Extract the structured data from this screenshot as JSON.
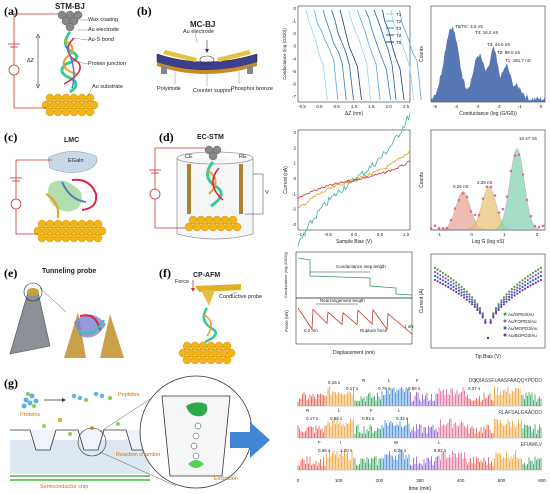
{
  "labels": {
    "a": "(a)",
    "b": "(b)",
    "c": "(c)",
    "d": "(d)",
    "e": "(e)",
    "f": "(f)",
    "g": "(g)"
  },
  "panel_a": {
    "title": "STM-BJ",
    "wax": "Wax coating",
    "au_electrode": "Au electrode",
    "aus_bond": "Au-S bond",
    "protein_junction": "Protein junction",
    "au_substrate": "Au substrate",
    "dz": "ΔZ"
  },
  "panel_b": {
    "title": "MC-BJ",
    "au_electrode": "Au electrode",
    "polyimide": "Polyimide",
    "counter_support": "Counter support",
    "phosphor": "Phosphor bronze"
  },
  "panel_c": {
    "title": "LMC",
    "egain": "EGaIn"
  },
  "panel_d": {
    "title": "EC-STM",
    "ce": "CE",
    "re": "RE",
    "v": "V"
  },
  "panel_e": {
    "title": "Tunneling probe"
  },
  "panel_f": {
    "title": "CP-AFM",
    "force": "Force",
    "conductive_probe": "Conductive probe"
  },
  "panel_g": {
    "proteins": "Proteins",
    "peptides": "Peptides",
    "reaction_chamber": "Reaction chamber",
    "chip": "Semiconductor chip",
    "excitation": "Excitation"
  },
  "chart_data": [
    {
      "type": "line",
      "xlabel": "ΔZ (nm)",
      "ylabel": "Conductance (log (G/G0))",
      "xticks": [
        "-0.5",
        "0.0",
        "0.5",
        "1.0",
        "1.5",
        "2.0",
        "2.5"
      ],
      "yticks": [
        "0",
        "-1",
        "-2",
        "-3",
        "-4",
        "-5",
        "-6",
        "-7"
      ],
      "series": [
        {
          "name": "T1"
        },
        {
          "name": "T2"
        },
        {
          "name": "T3"
        },
        {
          "name": "T4"
        },
        {
          "name": "T5"
        }
      ],
      "colors": [
        "#9ad4ec",
        "#5aa9db",
        "#2f7ec2",
        "#1f5a9e",
        "#163e73"
      ]
    },
    {
      "type": "area",
      "xlabel": "Conductance (log (G/G0))",
      "ylabel": "Counts",
      "xticks": [
        "-5",
        "-4",
        "-3",
        "-2",
        "-1",
        "0"
      ],
      "annotations": [
        "T5/T5': 3.5 nS",
        "T4: 16.2 nS",
        "T3: 44.6 nS",
        "T2: 89.0 nS",
        "T1: 181.7 nS"
      ]
    },
    {
      "type": "line",
      "xlabel": "Sample Bias (V)",
      "ylabel": "Current (nA)",
      "xticks": [
        "-1.0",
        "-0.5",
        "0.0",
        "0.5",
        "1.0"
      ],
      "yticks": [
        "3",
        "2",
        "1",
        "0",
        "-1",
        "-2",
        "-3"
      ],
      "colors": [
        "#3bb3a4",
        "#e0a020",
        "#cc3333"
      ]
    },
    {
      "type": "scatter",
      "xlabel": "Log G (log nS)",
      "ylabel": "Counts",
      "xticks": [
        "-1",
        "0",
        "1",
        "2"
      ],
      "annotations": [
        "0.26 nS",
        "2.29 nS",
        "10.47 nS"
      ]
    },
    {
      "type": "line",
      "xlabel": "Displacement (nm)",
      "ylabel_top": "Conductance (log (G/G0))",
      "ylabel_bottom": "Force (nN)",
      "annotations": [
        "Conductance step length",
        "Rearrangement length",
        "Rupture force",
        "0.2 nm",
        "1 nN"
      ]
    },
    {
      "type": "scatter",
      "xlabel": "Tip Bias (V)",
      "ylabel": "Current (A)",
      "legend": [
        "Au/OPD3/Au",
        "Au/FOPD3/Au",
        "Au/MOPD3/Au",
        "Au/BOPD3/Au"
      ],
      "colors": [
        "#4a9c3a",
        "#9b59b6",
        "#2563c7",
        "#7a2da8"
      ]
    },
    {
      "type": "bar",
      "xlabel": "time (min)",
      "xticks": [
        "0",
        "100",
        "200",
        "300",
        "400",
        "500",
        "600"
      ],
      "sequences": [
        "DQQIASSFLAASFAAQQYPDDD",
        "RLAFSALGAADDD",
        "EFIAWLV"
      ],
      "row1": [
        "0.16 s",
        "R",
        "L",
        "F",
        "Y",
        "0.17 s",
        "0.79 s",
        "0.85 s",
        "0.27 s"
      ],
      "row2": [
        "R",
        "L",
        "F",
        "L",
        "0.17 s",
        "0.86 s",
        "0.81 s",
        "0.34 s"
      ],
      "row3": [
        "F",
        "I",
        "W",
        "L",
        "0.65 s",
        "1.20 s",
        "0.26 s",
        "5.92 s"
      ]
    }
  ]
}
